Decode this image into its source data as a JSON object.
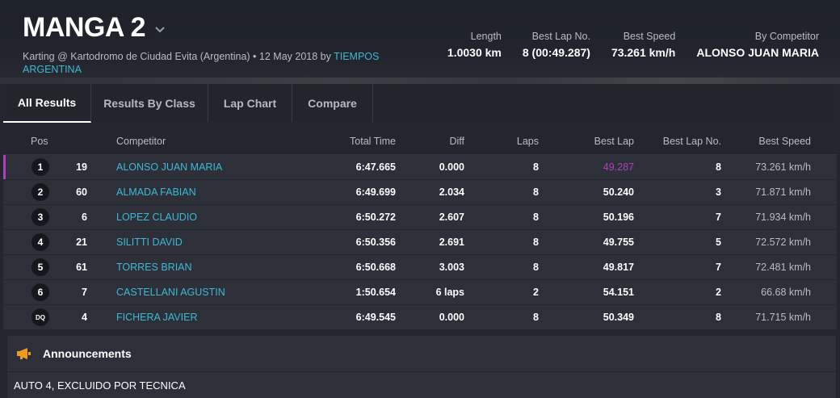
{
  "header": {
    "title": "MANGA 2",
    "subtitle_prefix": "Karting @ Kartodromo de Ciudad Evita (Argentina) • 12 May 2018 by ",
    "organizer": "TIEMPOS ARGENTINA",
    "stats": [
      {
        "label": "Length",
        "value": "1.0030 km"
      },
      {
        "label": "Best Lap No.",
        "value": "8 (00:49.287)"
      },
      {
        "label": "Best Speed",
        "value": "73.261 km/h"
      },
      {
        "label": "By Competitor",
        "value": "ALONSO JUAN MARIA"
      }
    ]
  },
  "tabs": [
    {
      "label": "All Results",
      "active": true
    },
    {
      "label": "Results By Class",
      "active": false
    },
    {
      "label": "Lap Chart",
      "active": false
    },
    {
      "label": "Compare",
      "active": false
    }
  ],
  "table": {
    "columns": {
      "pos": "Pos",
      "competitor": "Competitor",
      "total": "Total Time",
      "diff": "Diff",
      "laps": "Laps",
      "best": "Best Lap",
      "bestno": "Best Lap No.",
      "speed": "Best Speed"
    },
    "rows": [
      {
        "pos": "1",
        "num": "19",
        "name": "ALONSO JUAN MARIA",
        "total": "6:47.665",
        "diff": "0.000",
        "laps": "8",
        "best": "49.287",
        "bestno": "8",
        "speed": "73.261 km/h"
      },
      {
        "pos": "2",
        "num": "60",
        "name": "ALMADA FABIAN",
        "total": "6:49.699",
        "diff": "2.034",
        "laps": "8",
        "best": "50.240",
        "bestno": "3",
        "speed": "71.871 km/h"
      },
      {
        "pos": "3",
        "num": "6",
        "name": "LOPEZ CLAUDIO",
        "total": "6:50.272",
        "diff": "2.607",
        "laps": "8",
        "best": "50.196",
        "bestno": "7",
        "speed": "71.934 km/h"
      },
      {
        "pos": "4",
        "num": "21",
        "name": "SILITTI DAVID",
        "total": "6:50.356",
        "diff": "2.691",
        "laps": "8",
        "best": "49.755",
        "bestno": "5",
        "speed": "72.572 km/h"
      },
      {
        "pos": "5",
        "num": "61",
        "name": "TORRES BRIAN",
        "total": "6:50.668",
        "diff": "3.003",
        "laps": "8",
        "best": "49.817",
        "bestno": "7",
        "speed": "72.481 km/h"
      },
      {
        "pos": "6",
        "num": "7",
        "name": "CASTELLANI AGUSTIN",
        "total": "1:50.654",
        "diff": "6 laps",
        "laps": "2",
        "best": "54.151",
        "bestno": "2",
        "speed": "66.68 km/h"
      },
      {
        "pos": "DQ",
        "num": "4",
        "name": "FICHERA JAVIER",
        "total": "6:49.545",
        "diff": "0.000",
        "laps": "8",
        "best": "50.349",
        "bestno": "8",
        "speed": "71.715 km/h"
      }
    ]
  },
  "announcements": {
    "title": "Announcements",
    "text": "AUTO 4, EXCLUIDO POR TECNICA",
    "icon": "megaphone-icon"
  },
  "colors": {
    "accent_cyan": "#3fb8d6",
    "best_lap_purple": "#b13fbd",
    "megaphone_orange": "#f29a1f"
  }
}
